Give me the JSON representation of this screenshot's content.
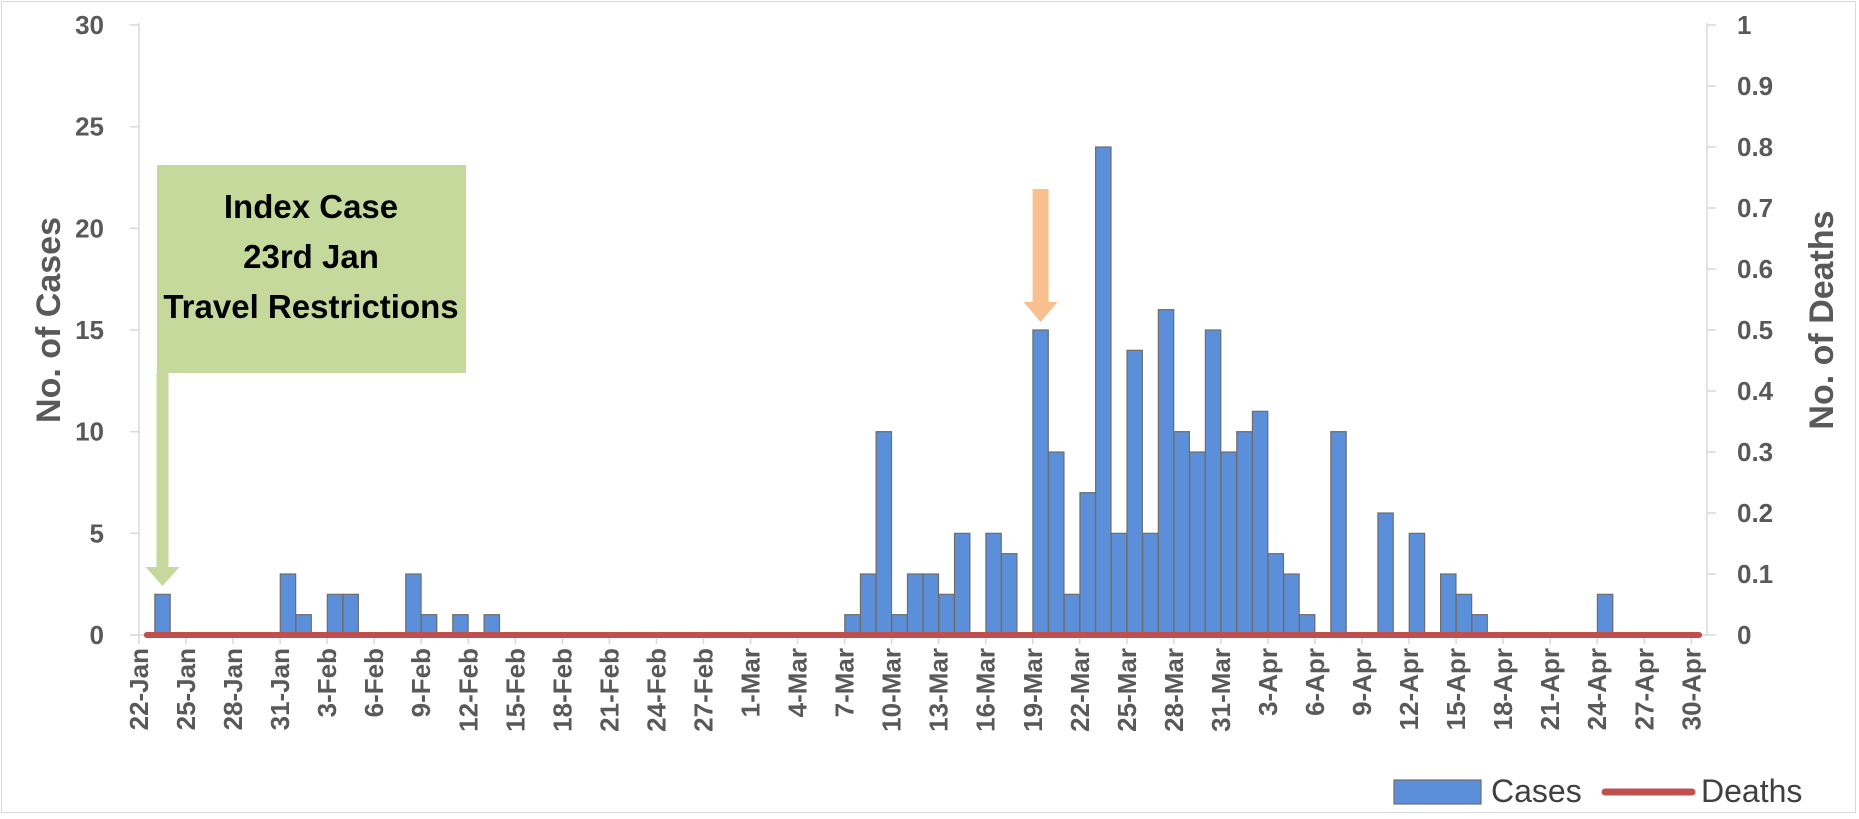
{
  "chart_data": {
    "type": "bar",
    "ylabel": "No. of Cases",
    "y2label": "No. of Deaths",
    "ylim": [
      0,
      30
    ],
    "y2lim": [
      0,
      1
    ],
    "yticks": [
      "0",
      "5",
      "10",
      "15",
      "20",
      "25",
      "30"
    ],
    "y2ticks": [
      "0",
      "0.1",
      "0.2",
      "0.3",
      "0.4",
      "0.5",
      "0.6",
      "0.7",
      "0.8",
      "0.9",
      "1"
    ],
    "xtick_labels": [
      "22-Jan",
      "25-Jan",
      "28-Jan",
      "31-Jan",
      "3-Feb",
      "6-Feb",
      "9-Feb",
      "12-Feb",
      "15-Feb",
      "18-Feb",
      "21-Feb",
      "24-Feb",
      "27-Feb",
      "1-Mar",
      "4-Mar",
      "7-Mar",
      "10-Mar",
      "13-Mar",
      "16-Mar",
      "19-Mar",
      "22-Mar",
      "25-Mar",
      "28-Mar",
      "31-Mar",
      "3-Apr",
      "6-Apr",
      "9-Apr",
      "12-Apr",
      "15-Apr",
      "18-Apr",
      "21-Apr",
      "24-Apr",
      "27-Apr",
      "30-Apr"
    ],
    "date_range": [
      "22-Jan",
      "30-Apr"
    ],
    "grid": false,
    "legend_position": "bottom-right",
    "series": [
      {
        "name": "Cases",
        "type": "bar",
        "axis": "left",
        "color": "#5B8FD9",
        "points": [
          {
            "date": "23-Jan",
            "value": 2
          },
          {
            "date": "31-Jan",
            "value": 3
          },
          {
            "date": "1-Feb",
            "value": 1
          },
          {
            "date": "3-Feb",
            "value": 2
          },
          {
            "date": "4-Feb",
            "value": 2
          },
          {
            "date": "8-Feb",
            "value": 3
          },
          {
            "date": "9-Feb",
            "value": 1
          },
          {
            "date": "11-Feb",
            "value": 1
          },
          {
            "date": "13-Feb",
            "value": 1
          },
          {
            "date": "7-Mar",
            "value": 1
          },
          {
            "date": "8-Mar",
            "value": 3
          },
          {
            "date": "9-Mar",
            "value": 10
          },
          {
            "date": "10-Mar",
            "value": 1
          },
          {
            "date": "11-Mar",
            "value": 3
          },
          {
            "date": "12-Mar",
            "value": 3
          },
          {
            "date": "13-Mar",
            "value": 2
          },
          {
            "date": "14-Mar",
            "value": 5
          },
          {
            "date": "16-Mar",
            "value": 5
          },
          {
            "date": "17-Mar",
            "value": 4
          },
          {
            "date": "19-Mar",
            "value": 15
          },
          {
            "date": "20-Mar",
            "value": 9
          },
          {
            "date": "21-Mar",
            "value": 2
          },
          {
            "date": "22-Mar",
            "value": 7
          },
          {
            "date": "23-Mar",
            "value": 24
          },
          {
            "date": "24-Mar",
            "value": 5
          },
          {
            "date": "25-Mar",
            "value": 14
          },
          {
            "date": "26-Mar",
            "value": 5
          },
          {
            "date": "27-Mar",
            "value": 16
          },
          {
            "date": "28-Mar",
            "value": 10
          },
          {
            "date": "29-Mar",
            "value": 9
          },
          {
            "date": "30-Mar",
            "value": 15
          },
          {
            "date": "31-Mar",
            "value": 9
          },
          {
            "date": "1-Apr",
            "value": 10
          },
          {
            "date": "2-Apr",
            "value": 11
          },
          {
            "date": "3-Apr",
            "value": 4
          },
          {
            "date": "4-Apr",
            "value": 3
          },
          {
            "date": "5-Apr",
            "value": 1
          },
          {
            "date": "7-Apr",
            "value": 10
          },
          {
            "date": "10-Apr",
            "value": 6
          },
          {
            "date": "12-Apr",
            "value": 5
          },
          {
            "date": "14-Apr",
            "value": 3
          },
          {
            "date": "15-Apr",
            "value": 2
          },
          {
            "date": "16-Apr",
            "value": 1
          },
          {
            "date": "24-Apr",
            "value": 2
          }
        ]
      },
      {
        "name": "Deaths",
        "type": "line",
        "axis": "right",
        "color": "#C0504D",
        "points": [
          {
            "date": "22-Jan",
            "value": 0
          },
          {
            "date": "30-Apr",
            "value": 0
          }
        ]
      }
    ],
    "annotations": [
      {
        "kind": "callout",
        "lines": [
          "Index Case",
          "23rd Jan",
          "Travel Restrictions"
        ],
        "points_to": "23-Jan",
        "color": "#C4D99B"
      },
      {
        "kind": "arrow",
        "points_to": "19-Mar",
        "color": "#F8C08E"
      }
    ]
  }
}
